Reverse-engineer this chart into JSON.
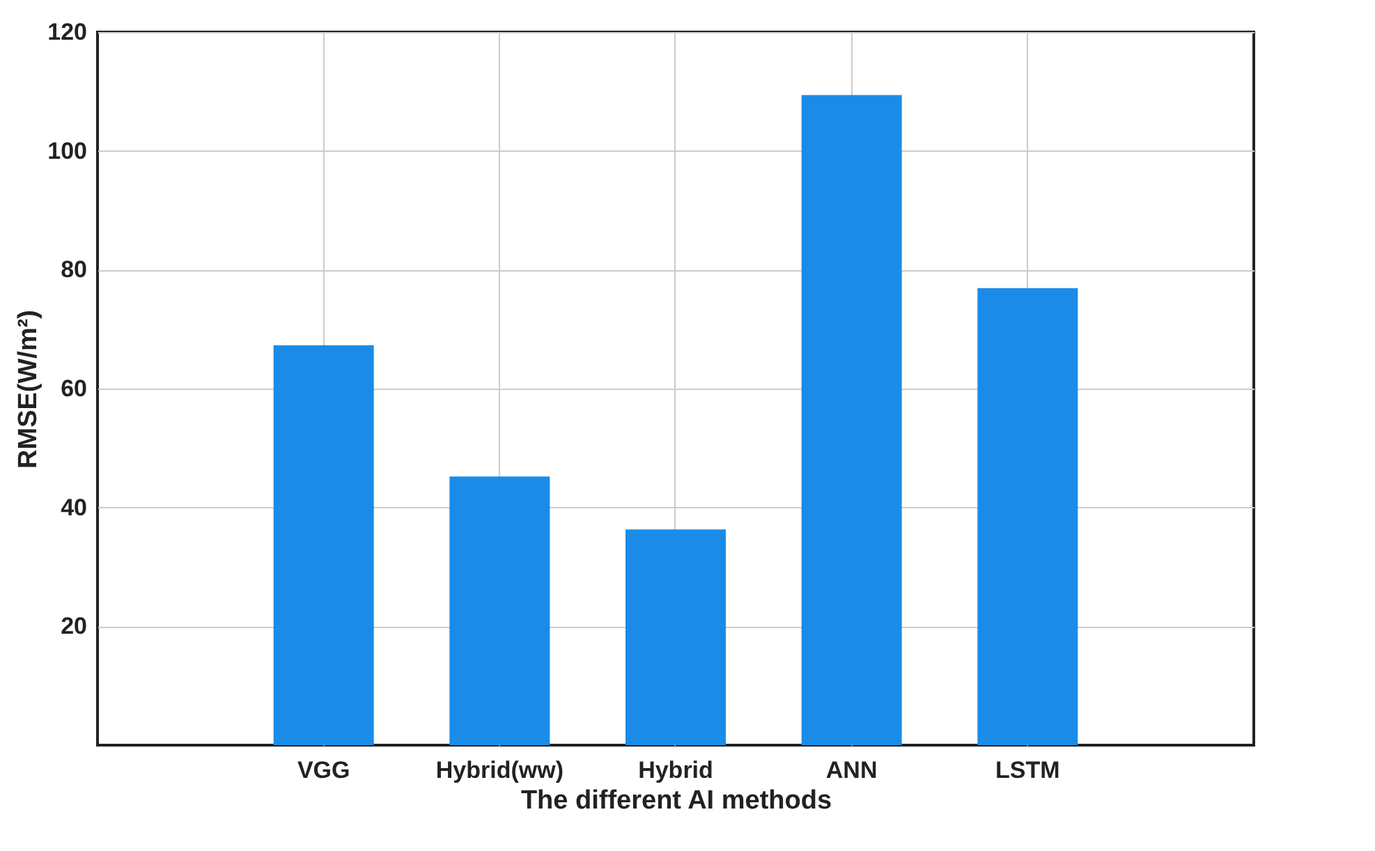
{
  "chart_data": {
    "type": "bar",
    "xlabel": "The different AI methods",
    "ylabel": "RMSE(W/m²)",
    "categories": [
      "VGG",
      "Hybrid(ww)",
      "Hybrid",
      "ANN",
      "LSTM"
    ],
    "values": [
      67.3,
      45.2,
      36.3,
      109.4,
      76.9
    ],
    "color": "#1a8ce8",
    "ylim": [
      0,
      120
    ],
    "yticks": [
      20,
      40,
      60,
      80,
      100,
      120
    ],
    "grid": true
  }
}
